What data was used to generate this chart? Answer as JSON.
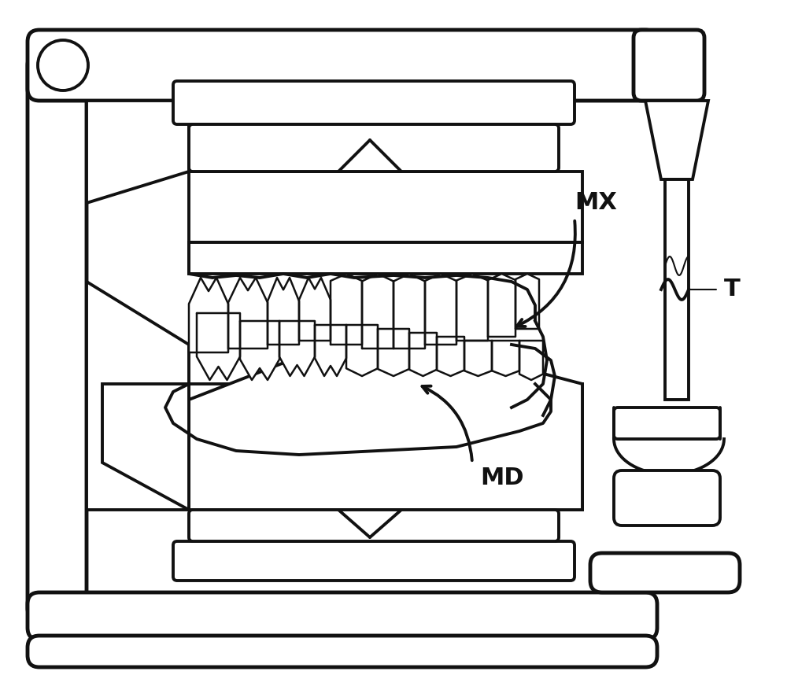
{
  "bg": "#ffffff",
  "lc": "#111111",
  "lw_main": 2.8,
  "lw_thick": 3.5,
  "lw_thin": 1.5,
  "fig_w": 10.0,
  "fig_h": 8.58,
  "label_MX": "MX",
  "label_MD": "MD",
  "label_T": "T",
  "label_fs": 22,
  "label_fw": "bold"
}
